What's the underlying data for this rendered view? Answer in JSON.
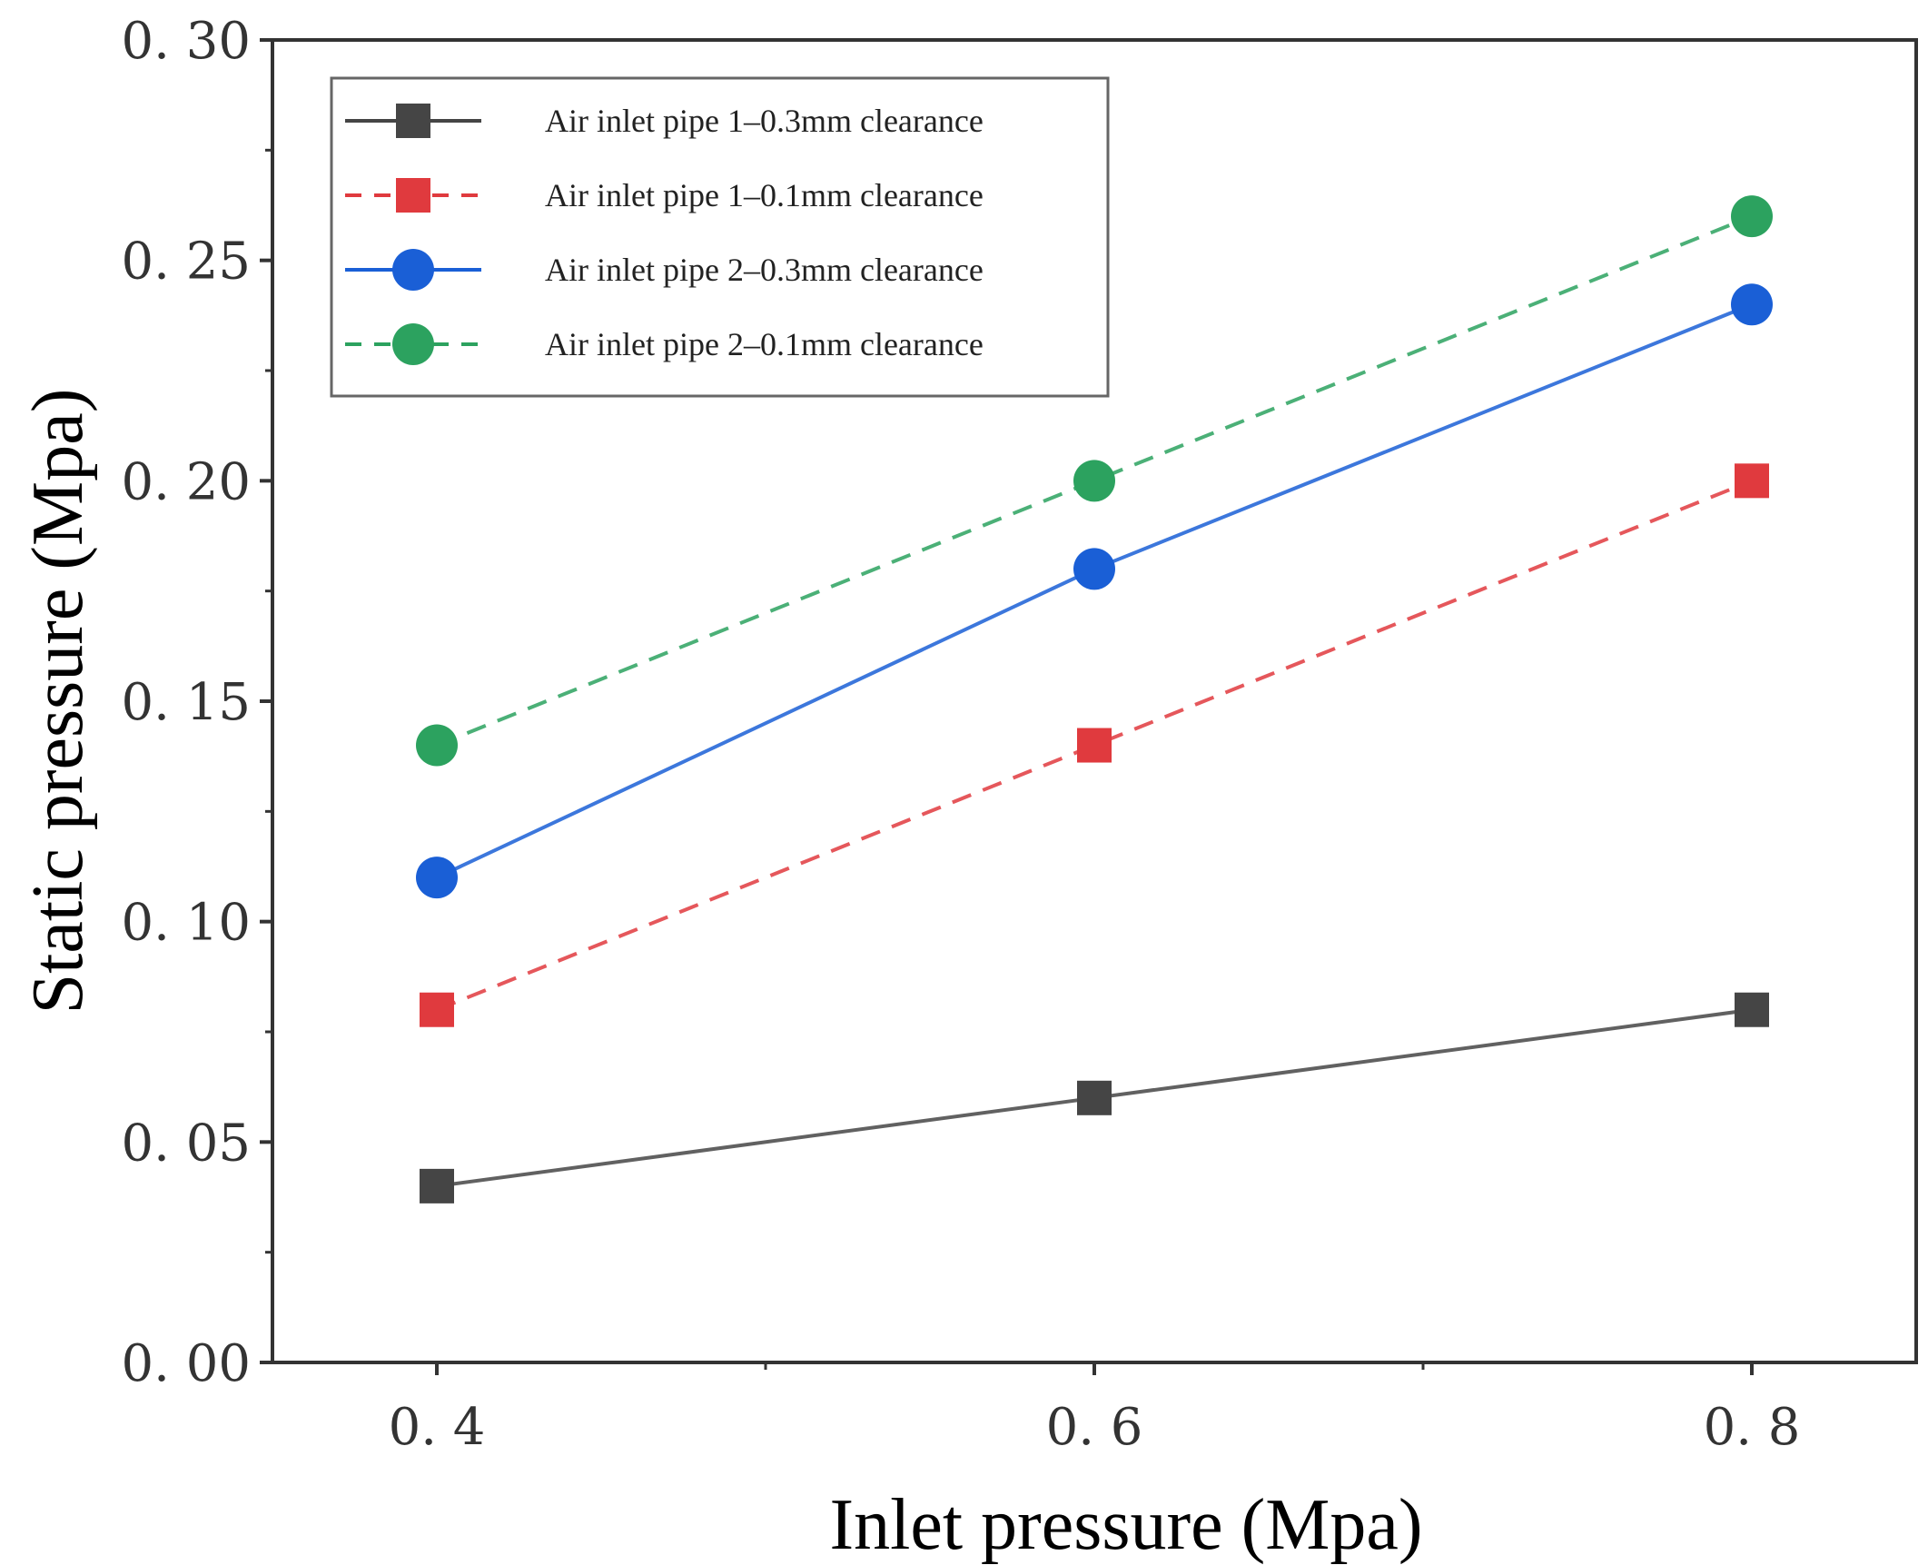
{
  "chart_data": {
    "type": "line",
    "title": "",
    "xlabel": "Inlet pressure (Mpa)",
    "ylabel": "Static pressure (Mpa)",
    "x": [
      0.4,
      0.6,
      0.8
    ],
    "x_tick_labels": [
      "0. 4",
      "0. 6",
      "0. 8"
    ],
    "y_tick_values": [
      0.0,
      0.05,
      0.1,
      0.15,
      0.2,
      0.25,
      0.3
    ],
    "y_tick_labels": [
      "0. 00",
      "0. 05",
      "0. 10",
      "0. 15",
      "0. 20",
      "0. 25",
      "0. 30"
    ],
    "xlim": [
      0.35,
      0.85
    ],
    "ylim": [
      0.0,
      0.3
    ],
    "grid": false,
    "legend_position": "top-left",
    "series": [
      {
        "name": "Air inlet pipe 1–0.3mm clearance",
        "values": [
          0.04,
          0.06,
          0.08
        ],
        "color": "#454545",
        "marker": "square",
        "dashed": false
      },
      {
        "name": "Air inlet pipe 1–0.1mm clearance",
        "values": [
          0.08,
          0.14,
          0.2
        ],
        "color": "#e03a3e",
        "marker": "square",
        "dashed": true
      },
      {
        "name": "Air inlet pipe 2–0.3mm clearance",
        "values": [
          0.11,
          0.18,
          0.24
        ],
        "color": "#1a5fd6",
        "marker": "circle",
        "dashed": false
      },
      {
        "name": "Air inlet pipe 2–0.1mm clearance",
        "values": [
          0.14,
          0.2,
          0.26
        ],
        "color": "#2ca25f",
        "marker": "circle",
        "dashed": true
      }
    ]
  }
}
